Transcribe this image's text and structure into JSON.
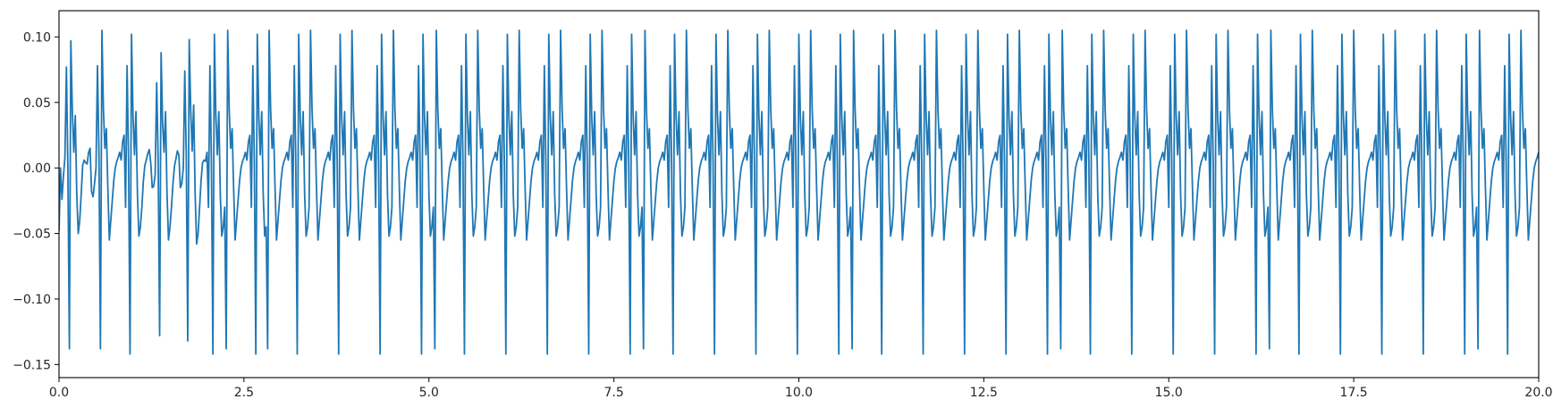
{
  "chart_data": {
    "type": "line",
    "title": "",
    "xlabel": "",
    "ylabel": "",
    "xlim": [
      0.0,
      20.0
    ],
    "ylim": [
      -0.16,
      0.12
    ],
    "grid": false,
    "legend": null,
    "line_color": "#1f77b4",
    "x_ticks": [
      {
        "value": 0.0,
        "label": "0.0"
      },
      {
        "value": 2.5,
        "label": "2.5"
      },
      {
        "value": 5.0,
        "label": "5.0"
      },
      {
        "value": 7.5,
        "label": "7.5"
      },
      {
        "value": 10.0,
        "label": "10.0"
      },
      {
        "value": 12.5,
        "label": "12.5"
      },
      {
        "value": 15.0,
        "label": "15.0"
      },
      {
        "value": 17.5,
        "label": "17.5"
      },
      {
        "value": 20.0,
        "label": "20.0"
      }
    ],
    "y_ticks": [
      {
        "value": -0.15,
        "label": "−0.15"
      },
      {
        "value": -0.1,
        "label": "−0.10"
      },
      {
        "value": -0.05,
        "label": "−0.05"
      },
      {
        "value": 0.0,
        "label": "0.00"
      },
      {
        "value": 0.05,
        "label": "0.05"
      },
      {
        "value": 0.1,
        "label": "0.10"
      }
    ],
    "series": [
      {
        "beat_period": 0.564,
        "x": [
          0.0,
          0.02,
          0.04,
          0.06,
          0.08,
          0.1,
          0.12,
          0.14,
          0.16,
          0.18,
          0.2,
          0.22,
          0.24,
          0.26,
          0.28,
          0.3,
          0.32,
          0.34,
          0.36,
          0.38,
          0.4,
          0.42,
          0.44,
          0.46,
          0.48,
          0.5,
          0.52,
          0.54,
          0.56,
          0.58,
          0.6,
          0.62,
          0.64,
          0.66,
          0.68,
          0.7,
          0.72,
          0.74,
          0.76,
          0.78,
          0.8,
          0.82,
          0.84,
          0.86,
          0.88,
          0.9,
          0.92,
          0.94,
          0.96,
          0.98,
          1.0,
          1.02,
          1.04,
          1.06,
          1.08,
          1.1,
          1.12,
          1.14,
          1.16,
          1.18,
          1.2,
          1.22,
          1.24,
          1.26,
          1.28,
          1.3,
          1.32,
          1.34,
          1.36,
          1.38,
          1.4,
          1.42,
          1.44,
          1.46,
          1.48,
          1.5,
          1.52,
          1.54,
          1.56,
          1.58,
          1.6,
          1.62,
          1.64,
          1.66,
          1.68,
          1.7,
          1.72,
          1.74,
          1.76,
          1.78,
          1.8,
          1.82,
          1.84,
          1.86,
          1.88,
          1.9,
          1.92,
          1.94,
          1.96,
          1.98,
          2.0
        ],
        "y": [
          -0.048,
          0.0,
          -0.024,
          -0.006,
          0.008,
          0.077,
          0.0,
          -0.138,
          0.097,
          0.044,
          0.012,
          0.04,
          -0.02,
          -0.05,
          -0.04,
          -0.02,
          0.002,
          0.006,
          0.004,
          0.003,
          0.012,
          0.015,
          -0.018,
          -0.022,
          -0.012,
          0.0,
          0.078,
          0.01,
          -0.138,
          0.105,
          0.045,
          0.015,
          0.03,
          -0.015,
          -0.055,
          -0.04,
          -0.025,
          -0.01,
          0.0,
          0.005,
          0.008,
          0.012,
          0.006,
          0.02,
          0.025,
          -0.03,
          0.078,
          0.005,
          -0.142,
          0.102,
          0.04,
          0.01,
          0.043,
          -0.02,
          -0.052,
          -0.045,
          -0.03,
          -0.01,
          0.002,
          0.006,
          0.011,
          0.014,
          0.004,
          -0.015,
          -0.014,
          -0.005,
          0.065,
          0.008,
          -0.128,
          0.088,
          0.035,
          0.012,
          0.043,
          -0.02,
          -0.055,
          -0.045,
          -0.03,
          -0.012,
          0.001,
          0.007,
          0.013,
          0.01,
          -0.015,
          -0.012,
          0.0,
          0.074,
          0.01,
          -0.132,
          0.098,
          0.045,
          0.013,
          0.048,
          -0.02,
          -0.058,
          -0.05,
          -0.03,
          -0.01,
          0.004,
          0.006,
          0.005,
          0.012
        ]
      }
    ]
  }
}
